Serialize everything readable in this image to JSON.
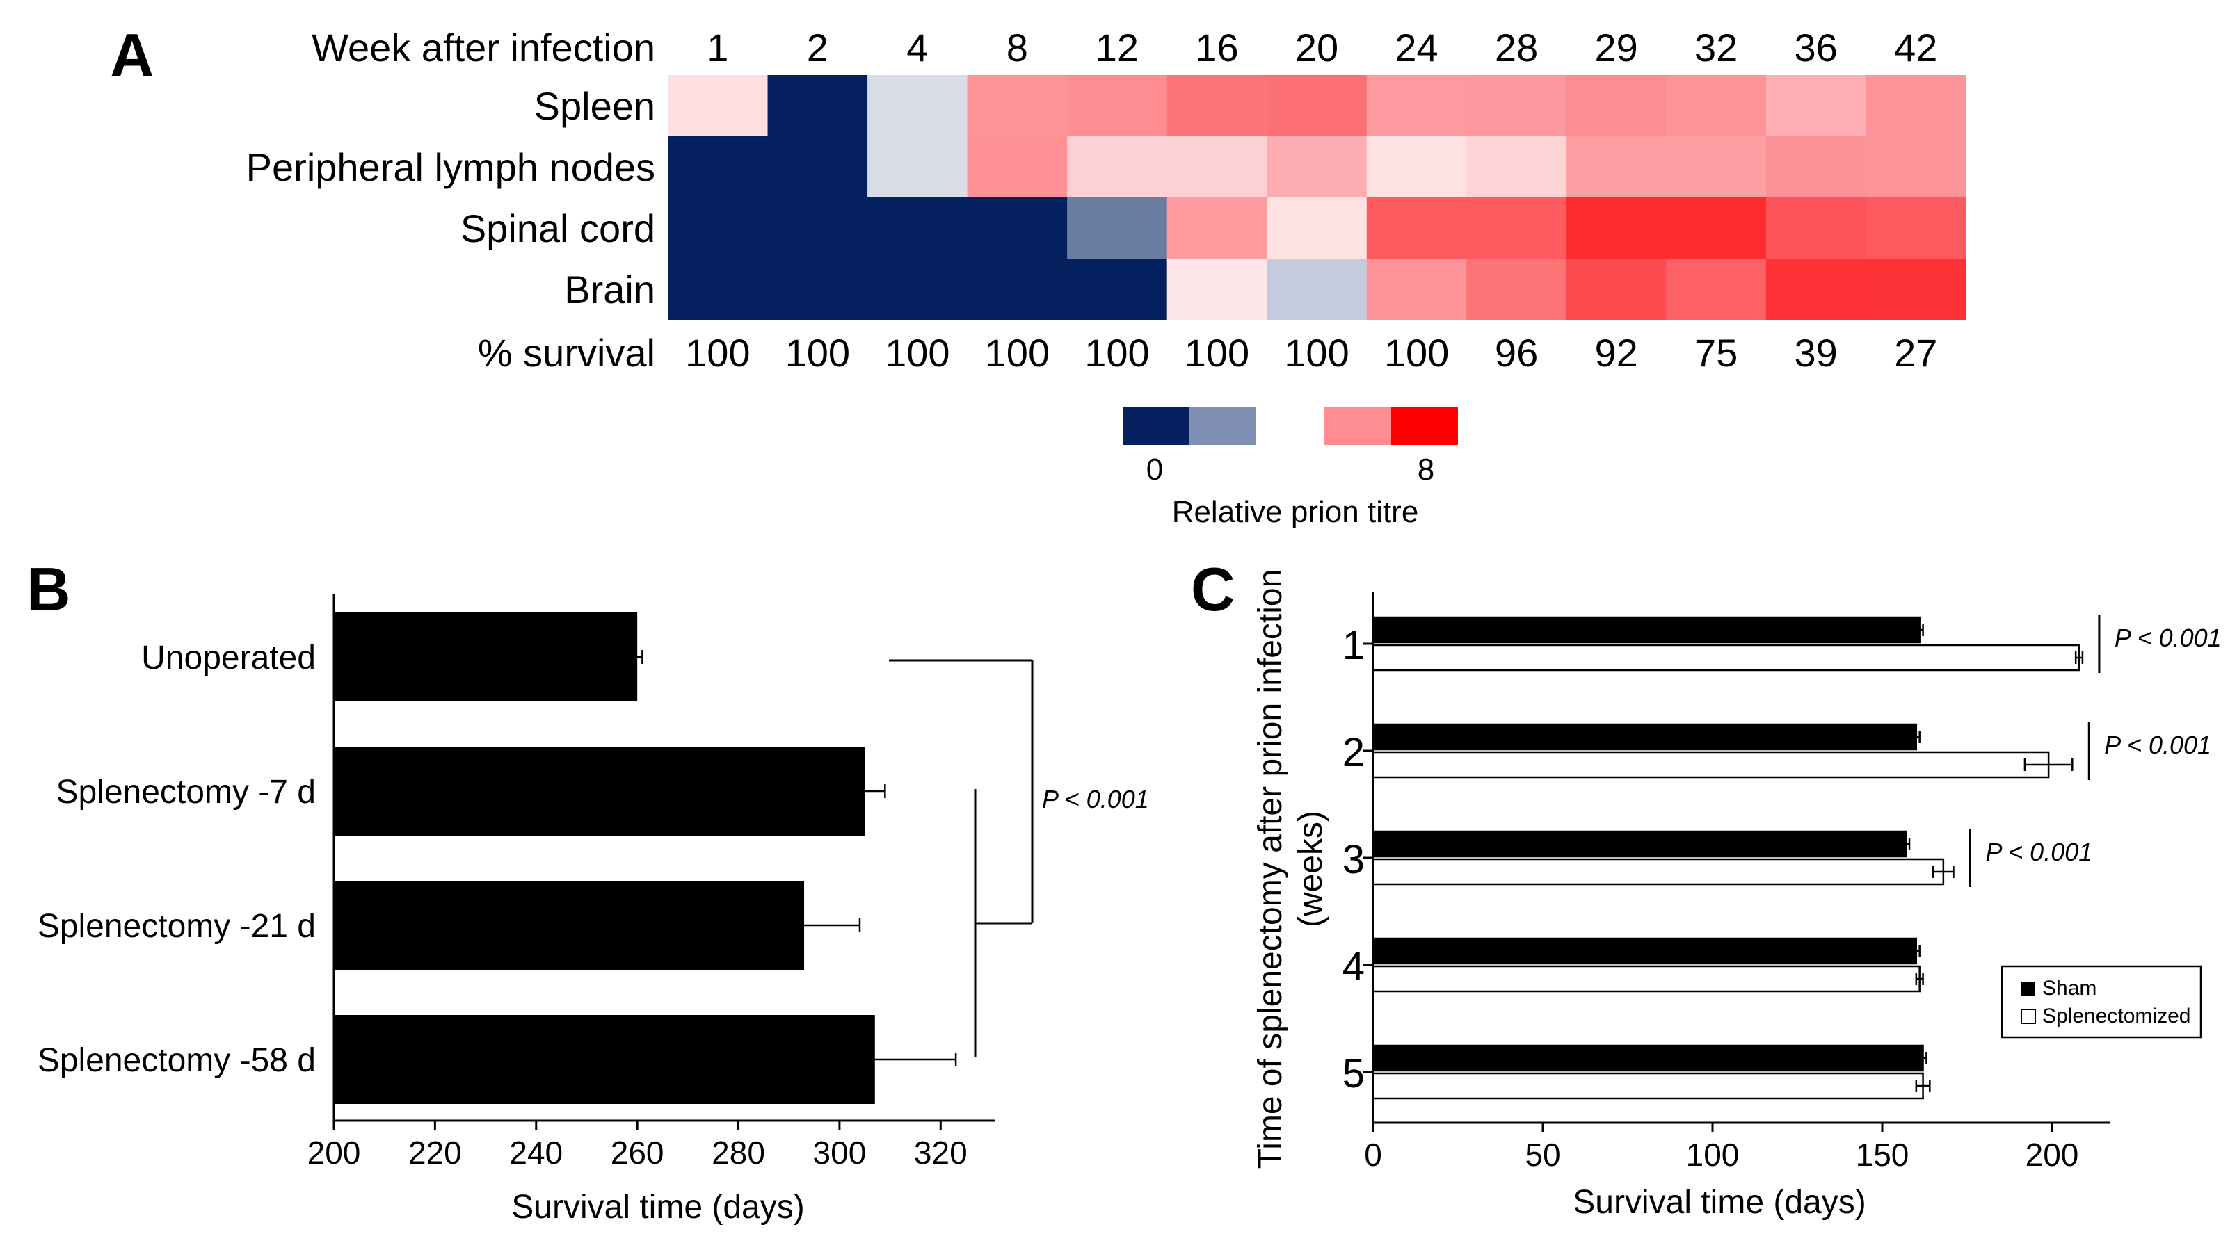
{
  "figure": {
    "panel_a": {
      "label": "A",
      "row_header": "Week after infection",
      "footer_label": "% survival",
      "weeks": [
        "1",
        "2",
        "4",
        "8",
        "12",
        "16",
        "20",
        "24",
        "28",
        "29",
        "32",
        "36",
        "42"
      ],
      "survival": [
        "100",
        "100",
        "100",
        "100",
        "100",
        "100",
        "100",
        "100",
        "96",
        "92",
        "75",
        "39",
        "27"
      ],
      "rows": [
        {
          "name": "Spleen",
          "colors": [
            "#fddfe1",
            "#05205f",
            "#d8dde8",
            "#fd9397",
            "#fd8d91",
            "#fd7478",
            "#fd7175",
            "#fd9ba0",
            "#fd999e",
            "#fd8d92",
            "#fd9297",
            "#fdaeb2",
            "#fd9499"
          ]
        },
        {
          "name": "Peripheral lymph nodes",
          "colors": [
            "#05205f",
            "#05205f",
            "#d9dde7",
            "#fd9196",
            "#fdd1d4",
            "#fdd1d4",
            "#fdadb1",
            "#fee1e3",
            "#fdd3d5",
            "#fd9fa3",
            "#fda0a4",
            "#fd9296",
            "#fd9498"
          ]
        },
        {
          "name": "Spinal cord",
          "colors": [
            "#05205f",
            "#05205f",
            "#05205f",
            "#05205f",
            "#6b7ca3",
            "#fd9a9e",
            "#fee1e3",
            "#fd5a5f",
            "#fd5b60",
            "#fd2c31",
            "#fd2c31",
            "#fd5459",
            "#fd5a5f"
          ]
        },
        {
          "name": "Brain",
          "colors": [
            "#05205f",
            "#05205f",
            "#05205f",
            "#05205f",
            "#05205f",
            "#fee7e9",
            "#c5cbdc",
            "#fd9397",
            "#fd7478",
            "#fd4b50",
            "#fd6166",
            "#fd3136",
            "#fd3237"
          ]
        }
      ],
      "legend": {
        "title": "Relative prion titre",
        "low_label": "0",
        "high_label": "8",
        "colors": [
          "#05205f",
          "#8090b5",
          "#fd8d91",
          "#fe0000"
        ]
      }
    },
    "panel_b": {
      "label": "B",
      "xlabel": "Survival time (days)",
      "ticks": [
        "200",
        "220",
        "240",
        "260",
        "280",
        "300",
        "320"
      ],
      "p_label": "P < 0.001"
    },
    "panel_c": {
      "label": "C",
      "xlabel": "Survival time (days)",
      "ylabel_line1": "Time of splenectomy after prion infection",
      "ylabel_line2": "(weeks)",
      "ticks": [
        "0",
        "50",
        "100",
        "150",
        "200"
      ],
      "p_labels": [
        "P < 0.001",
        "P < 0.001",
        "P < 0.001"
      ],
      "legend": {
        "sham": "Sham",
        "splenectomized": "Splenectomized"
      }
    }
  },
  "chart_data": [
    {
      "type": "heatmap",
      "title": "",
      "xlabel": "Week after infection",
      "ylabel": "",
      "x": [
        1,
        2,
        4,
        8,
        12,
        16,
        20,
        24,
        28,
        29,
        32,
        36,
        42
      ],
      "rows": [
        "Spleen",
        "Peripheral lymph nodes",
        "Spinal cord",
        "Brain"
      ],
      "values": [
        [
          2,
          0,
          1,
          6,
          6,
          7,
          7,
          5,
          5,
          6,
          6,
          4,
          6
        ],
        [
          0,
          0,
          1,
          6,
          3,
          3,
          4,
          2,
          3,
          5,
          5,
          6,
          6
        ],
        [
          0,
          0,
          0,
          0,
          1,
          5,
          2,
          8,
          8,
          8,
          8,
          8,
          8
        ],
        [
          0,
          0,
          0,
          0,
          0,
          2,
          1,
          6,
          7,
          8,
          7,
          8,
          8
        ]
      ],
      "value_range": [
        0,
        8
      ],
      "survival_percent": [
        100,
        100,
        100,
        100,
        100,
        100,
        100,
        100,
        96,
        92,
        75,
        39,
        27
      ],
      "colorbar_label": "Relative prion titre"
    },
    {
      "type": "bar",
      "orientation": "horizontal",
      "title": "",
      "categories": [
        "Unoperated",
        "Splenectomy -7 d",
        "Splenectomy -21 d",
        "Splenectomy -58 d"
      ],
      "values": [
        260,
        305,
        293,
        307
      ],
      "errors": [
        1,
        4,
        11,
        16
      ],
      "xlabel": "Survival time (days)",
      "ylabel": "",
      "xlim": [
        200,
        330
      ],
      "annotation": "P < 0.001"
    },
    {
      "type": "bar",
      "orientation": "horizontal",
      "title": "",
      "categories": [
        "1",
        "2",
        "3",
        "4",
        "5"
      ],
      "series": [
        {
          "name": "Sham",
          "values": [
            161,
            160,
            157,
            160,
            162
          ],
          "errors": [
            1,
            1,
            1,
            1,
            1
          ]
        },
        {
          "name": "Splenectomized",
          "values": [
            208,
            199,
            168,
            161,
            162
          ],
          "errors": [
            1,
            7,
            3,
            1,
            2
          ]
        }
      ],
      "xlabel": "Survival time (days)",
      "ylabel": "Time of splenectomy after prion infection (weeks)",
      "xlim": [
        0,
        217
      ],
      "annotations": [
        "P < 0.001",
        "P < 0.001",
        "P < 0.001"
      ],
      "legend_position": "bottom-right"
    }
  ]
}
